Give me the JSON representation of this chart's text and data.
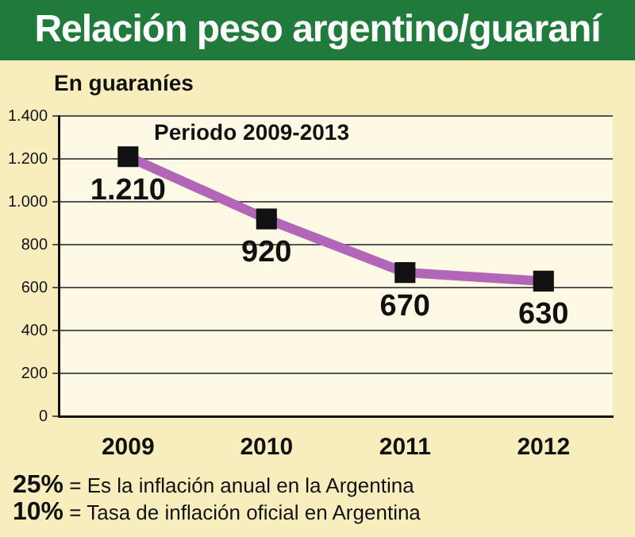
{
  "chart_data": {
    "type": "line",
    "title": "Relación peso argentino/guaraní",
    "ylabel": "En guaraníes",
    "categories": [
      "2009",
      "2010",
      "2011",
      "2012"
    ],
    "series": [
      {
        "color": "#b366b8",
        "values": [
          1210,
          920,
          670,
          630
        ],
        "value_labels": [
          "1.210",
          "920",
          "670",
          "630"
        ]
      }
    ],
    "ylim": [
      0,
      1400
    ],
    "yticks": [
      0,
      200,
      400,
      600,
      800,
      {
        "value": 1000,
        "label": "1.000"
      },
      {
        "value": 1200,
        "label": "1.200"
      },
      {
        "value": 1400,
        "label": "1.400"
      }
    ],
    "grid": "y",
    "marker": "square",
    "line_style": "solid",
    "legend": false,
    "annotations": [
      "Periodo 2009-2013",
      "25% = Es la inflación anual en la Argentina",
      "10% = Tasa de inflación oficial en Argentina"
    ]
  }
}
